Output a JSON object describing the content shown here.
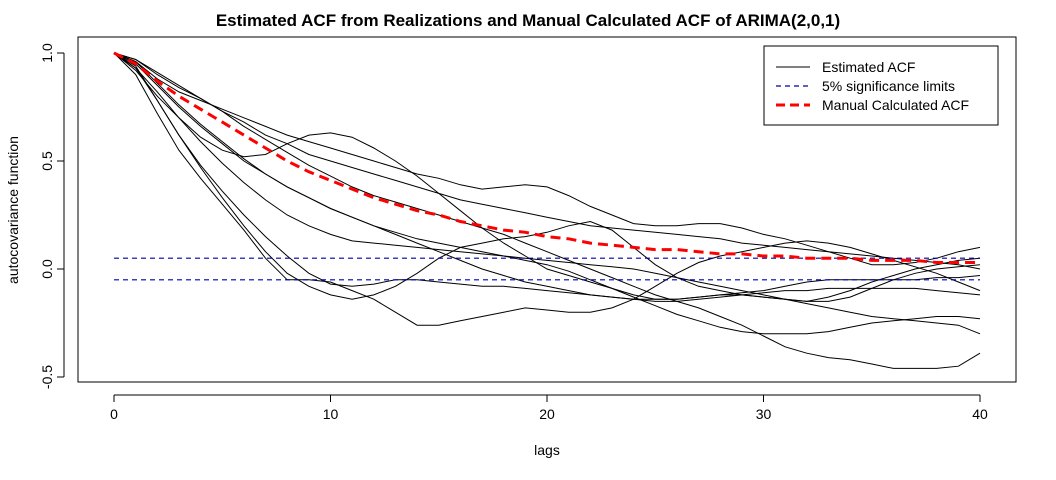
{
  "chart_data": {
    "type": "line",
    "title": "Estimated ACF from Realizations and Manual Calculated ACF of ARIMA(2,0,1)",
    "xlabel": "lags",
    "ylabel": "autocovariance function",
    "xlim": [
      0,
      40
    ],
    "ylim": [
      -0.5,
      1.0
    ],
    "x_ticks": [
      0,
      10,
      20,
      30,
      40
    ],
    "y_ticks": [
      -0.5,
      0.0,
      0.5,
      1.0
    ],
    "x_tick_labels": [
      "0",
      "10",
      "20",
      "30",
      "40"
    ],
    "y_tick_labels": [
      "-0.5",
      "0.0",
      "0.5",
      "1.0"
    ],
    "grid": false,
    "legend_position": "top-right",
    "legend": [
      {
        "label": "Estimated ACF",
        "color": "#000000",
        "style": "solid"
      },
      {
        "label": "5% significance limits",
        "color": "#0000aa",
        "style": "dashed"
      },
      {
        "label": "Manual Calculated ACF",
        "color": "#ff0000",
        "style": "dashed-thick"
      }
    ],
    "significance_limits": [
      0.05,
      -0.05
    ],
    "manual_acf": {
      "color": "#ff0000",
      "x": [
        0,
        1,
        2,
        3,
        4,
        5,
        6,
        7,
        8,
        9,
        10,
        11,
        12,
        13,
        14,
        15,
        16,
        17,
        18,
        19,
        20,
        21,
        22,
        23,
        24,
        25,
        26,
        27,
        28,
        29,
        30,
        31,
        32,
        33,
        34,
        35,
        36,
        37,
        38,
        39,
        40
      ],
      "values": [
        1.0,
        0.95,
        0.87,
        0.8,
        0.74,
        0.68,
        0.62,
        0.56,
        0.5,
        0.45,
        0.41,
        0.37,
        0.33,
        0.3,
        0.27,
        0.25,
        0.22,
        0.2,
        0.18,
        0.17,
        0.15,
        0.14,
        0.12,
        0.11,
        0.1,
        0.09,
        0.09,
        0.08,
        0.07,
        0.07,
        0.06,
        0.06,
        0.05,
        0.05,
        0.05,
        0.04,
        0.04,
        0.04,
        0.03,
        0.03,
        0.03
      ]
    },
    "realizations": [
      {
        "values": [
          1.0,
          0.97,
          0.9,
          0.84,
          0.79,
          0.73,
          0.68,
          0.62,
          0.58,
          0.53,
          0.5,
          0.47,
          0.44,
          0.41,
          0.38,
          0.35,
          0.32,
          0.3,
          0.28,
          0.26,
          0.24,
          0.22,
          0.2,
          0.19,
          0.18,
          0.17,
          0.16,
          0.15,
          0.14,
          0.12,
          0.11,
          0.1,
          0.09,
          0.08,
          0.07,
          0.06,
          0.05,
          0.04,
          0.03,
          0.02,
          0.0
        ]
      },
      {
        "values": [
          1.0,
          0.96,
          0.88,
          0.82,
          0.78,
          0.74,
          0.7,
          0.66,
          0.62,
          0.59,
          0.56,
          0.53,
          0.5,
          0.47,
          0.44,
          0.42,
          0.39,
          0.37,
          0.38,
          0.39,
          0.38,
          0.34,
          0.29,
          0.25,
          0.21,
          0.2,
          0.2,
          0.21,
          0.21,
          0.19,
          0.16,
          0.14,
          0.11,
          0.08,
          0.05,
          0.02,
          0.02,
          0.03,
          0.05,
          0.08,
          0.1
        ]
      },
      {
        "values": [
          1.0,
          0.95,
          0.85,
          0.75,
          0.66,
          0.58,
          0.5,
          0.44,
          0.38,
          0.33,
          0.28,
          0.24,
          0.2,
          0.17,
          0.14,
          0.12,
          0.1,
          0.08,
          0.06,
          0.05,
          0.04,
          0.03,
          0.02,
          0.01,
          0.0,
          -0.02,
          -0.04,
          -0.06,
          -0.08,
          -0.1,
          -0.12,
          -0.14,
          -0.16,
          -0.18,
          -0.2,
          -0.22,
          -0.23,
          -0.24,
          -0.25,
          -0.26,
          -0.3
        ]
      },
      {
        "values": [
          1.0,
          0.9,
          0.72,
          0.55,
          0.42,
          0.3,
          0.18,
          0.05,
          -0.05,
          -0.05,
          -0.06,
          -0.1,
          -0.14,
          -0.2,
          -0.26,
          -0.26,
          -0.24,
          -0.22,
          -0.2,
          -0.18,
          -0.19,
          -0.2,
          -0.2,
          -0.18,
          -0.14,
          -0.08,
          -0.02,
          0.03,
          0.06,
          0.08,
          0.1,
          0.12,
          0.13,
          0.12,
          0.1,
          0.07,
          0.04,
          0.01,
          -0.02,
          -0.06,
          -0.1
        ]
      },
      {
        "values": [
          1.0,
          0.94,
          0.78,
          0.62,
          0.47,
          0.33,
          0.2,
          0.08,
          -0.02,
          -0.08,
          -0.12,
          -0.14,
          -0.12,
          -0.08,
          -0.02,
          0.05,
          0.1,
          0.12,
          0.14,
          0.15,
          0.17,
          0.2,
          0.22,
          0.18,
          0.1,
          0.02,
          -0.04,
          -0.08,
          -0.1,
          -0.12,
          -0.13,
          -0.14,
          -0.15,
          -0.13,
          -0.1,
          -0.06,
          -0.03,
          0.0,
          0.02,
          0.04,
          0.05
        ]
      },
      {
        "values": [
          1.0,
          0.92,
          0.8,
          0.7,
          0.61,
          0.55,
          0.52,
          0.53,
          0.58,
          0.62,
          0.63,
          0.61,
          0.56,
          0.5,
          0.43,
          0.35,
          0.27,
          0.19,
          0.12,
          0.06,
          0.0,
          -0.03,
          -0.06,
          -0.09,
          -0.12,
          -0.14,
          -0.14,
          -0.13,
          -0.12,
          -0.12,
          -0.13,
          -0.14,
          -0.15,
          -0.15,
          -0.13,
          -0.09,
          -0.05,
          -0.02,
          0.0,
          0.01,
          0.02
        ]
      },
      {
        "values": [
          1.0,
          0.93,
          0.82,
          0.7,
          0.59,
          0.49,
          0.4,
          0.32,
          0.25,
          0.2,
          0.16,
          0.13,
          0.12,
          0.11,
          0.1,
          0.09,
          0.08,
          0.07,
          0.06,
          0.04,
          0.02,
          -0.01,
          -0.05,
          -0.09,
          -0.13,
          -0.17,
          -0.21,
          -0.24,
          -0.27,
          -0.29,
          -0.3,
          -0.3,
          -0.3,
          -0.29,
          -0.27,
          -0.25,
          -0.24,
          -0.23,
          -0.22,
          -0.22,
          -0.23
        ]
      },
      {
        "values": [
          1.0,
          0.96,
          0.86,
          0.76,
          0.67,
          0.59,
          0.51,
          0.44,
          0.38,
          0.33,
          0.28,
          0.24,
          0.2,
          0.16,
          0.12,
          0.08,
          0.04,
          0.0,
          -0.03,
          -0.06,
          -0.08,
          -0.1,
          -0.12,
          -0.13,
          -0.14,
          -0.15,
          -0.15,
          -0.14,
          -0.13,
          -0.12,
          -0.11,
          -0.1,
          -0.1,
          -0.09,
          -0.09,
          -0.09,
          -0.09,
          -0.09,
          -0.1,
          -0.11,
          -0.12
        ]
      },
      {
        "values": [
          1.0,
          0.93,
          0.78,
          0.62,
          0.48,
          0.36,
          0.25,
          0.15,
          0.06,
          -0.02,
          -0.07,
          -0.08,
          -0.07,
          -0.05,
          -0.05,
          -0.06,
          -0.07,
          -0.08,
          -0.08,
          -0.09,
          -0.1,
          -0.11,
          -0.12,
          -0.13,
          -0.14,
          -0.14,
          -0.14,
          -0.13,
          -0.12,
          -0.11,
          -0.1,
          -0.08,
          -0.06,
          -0.05,
          -0.05,
          -0.05,
          -0.05,
          -0.05,
          -0.04,
          -0.04,
          -0.03
        ]
      },
      {
        "values": [
          1.0,
          0.97,
          0.91,
          0.85,
          0.79,
          0.73,
          0.66,
          0.6,
          0.54,
          0.48,
          0.43,
          0.38,
          0.34,
          0.31,
          0.28,
          0.25,
          0.22,
          0.19,
          0.16,
          0.12,
          0.08,
          0.04,
          0.0,
          -0.04,
          -0.08,
          -0.12,
          -0.15,
          -0.18,
          -0.22,
          -0.26,
          -0.31,
          -0.36,
          -0.39,
          -0.41,
          -0.42,
          -0.44,
          -0.46,
          -0.46,
          -0.46,
          -0.45,
          -0.39
        ]
      }
    ]
  }
}
